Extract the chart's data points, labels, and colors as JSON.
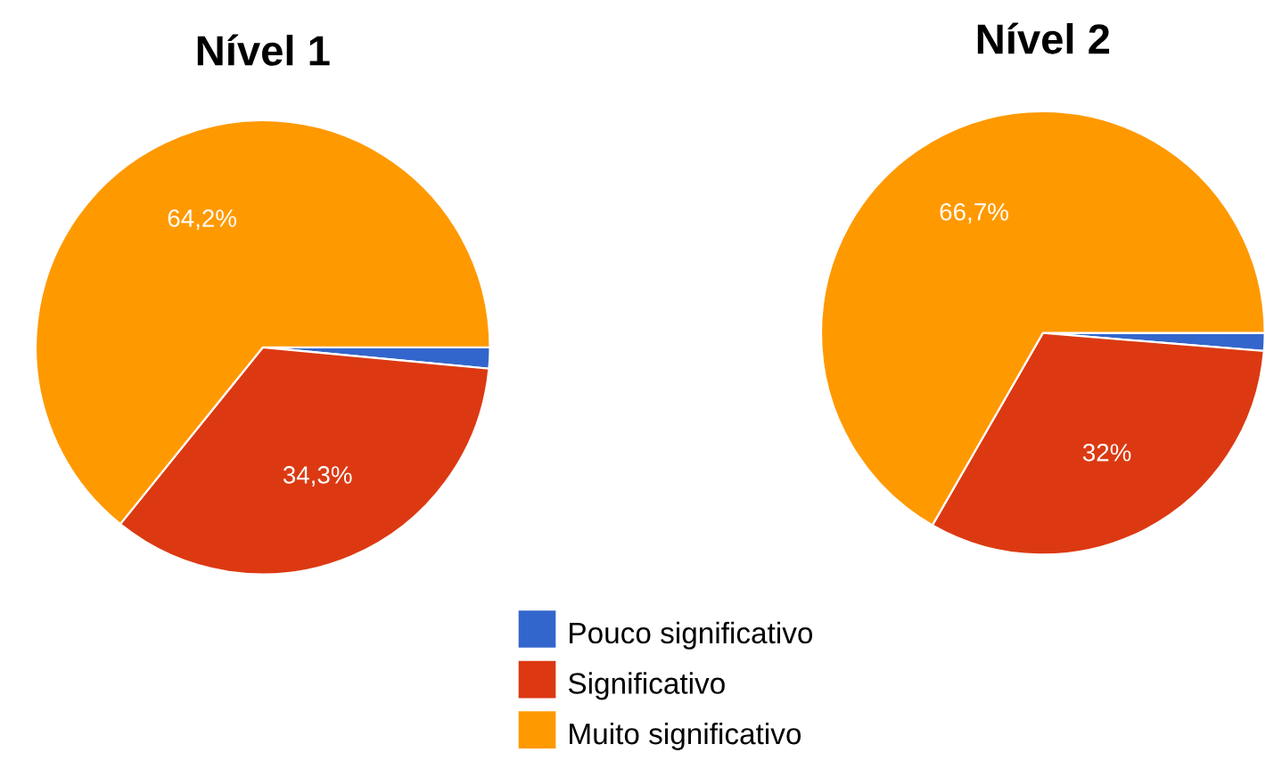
{
  "chart_data": [
    {
      "type": "pie",
      "title": "Nível 1",
      "categories": [
        "Pouco significativo",
        "Significativo",
        "Muito significativo"
      ],
      "values": [
        1.5,
        34.3,
        64.2
      ],
      "colors": [
        "#3366cc",
        "#dc3912",
        "#ff9900"
      ],
      "value_labels": [
        null,
        "34,3%",
        "64,2%"
      ],
      "legend": "bottom"
    },
    {
      "type": "pie",
      "title": "Nível 2",
      "categories": [
        null,
        null,
        null
      ],
      "values": [
        1.3,
        32,
        66.7
      ],
      "colors": [
        "#3366cc",
        "#dc3912",
        "#ff9900"
      ],
      "value_labels": [
        null,
        "32%",
        "66,7%"
      ]
    }
  ]
}
